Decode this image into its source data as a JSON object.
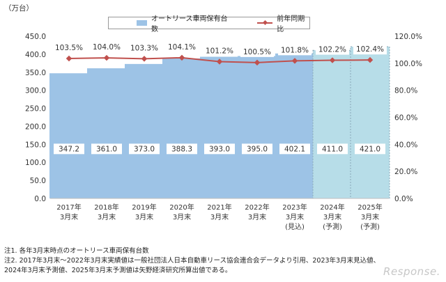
{
  "unit_label": "（万台）",
  "legend": {
    "bars": "オートリース車両保有台数",
    "line": "前年同期比"
  },
  "colors": {
    "bar_actual": "#9dc3e6",
    "bar_forecast": "#b7dde8",
    "line": "#c0504d"
  },
  "notes": [
    "注1. 各年3月末時点のオートリース車両保有台数",
    "注2. 2017年3月末～2022年3月末実績値は一般社団法人日本自動車リース協会連合会データより引用、2023年3月末見込値、",
    "2024年3月末予測値、2025年3月末予測値は矢野経済研究所算出値である。"
  ],
  "watermark": "Response.",
  "chart_data": {
    "type": "bar",
    "categories": [
      [
        "2017年",
        "3月末"
      ],
      [
        "2018年",
        "3月末"
      ],
      [
        "2019年",
        "3月末"
      ],
      [
        "2020年",
        "3月末"
      ],
      [
        "2021年",
        "3月末"
      ],
      [
        "2022年",
        "3月末"
      ],
      [
        "2023年",
        "3月末",
        "(見込)"
      ],
      [
        "2024年",
        "3月末",
        "(予測)"
      ],
      [
        "2025年",
        "3月末",
        "(予測)"
      ]
    ],
    "series": [
      {
        "name": "オートリース車両保有台数",
        "type": "bar",
        "axis": "left",
        "values": [
          347.2,
          361.0,
          373.0,
          388.3,
          393.0,
          395.0,
          402.1,
          411.0,
          421.0
        ],
        "labels": [
          "347.2",
          "361.0",
          "373.0",
          "388.3",
          "393.0",
          "395.0",
          "402.1",
          "411.0",
          "421.0"
        ],
        "forecast": [
          false,
          false,
          false,
          false,
          false,
          false,
          false,
          true,
          true
        ]
      },
      {
        "name": "前年同期比",
        "type": "line",
        "axis": "right",
        "values": [
          103.5,
          104.0,
          103.3,
          104.1,
          101.2,
          100.5,
          101.8,
          102.2,
          102.4
        ],
        "labels": [
          "103.5%",
          "104.0%",
          "103.3%",
          "104.1%",
          "101.2%",
          "100.5%",
          "101.8%",
          "102.2%",
          "102.4%"
        ]
      }
    ],
    "y_left": {
      "min": 0,
      "max": 450,
      "step": 50,
      "ticks": [
        "0.0",
        "50.0",
        "100.0",
        "150.0",
        "200.0",
        "250.0",
        "300.0",
        "350.0",
        "400.0",
        "450.0"
      ]
    },
    "y_right": {
      "min": 0,
      "max": 120,
      "step": 20,
      "ticks": [
        "0.0%",
        "20.0%",
        "40.0%",
        "60.0%",
        "80.0%",
        "100.0%",
        "120.0%"
      ]
    },
    "grid": false,
    "legend_position": "top"
  }
}
